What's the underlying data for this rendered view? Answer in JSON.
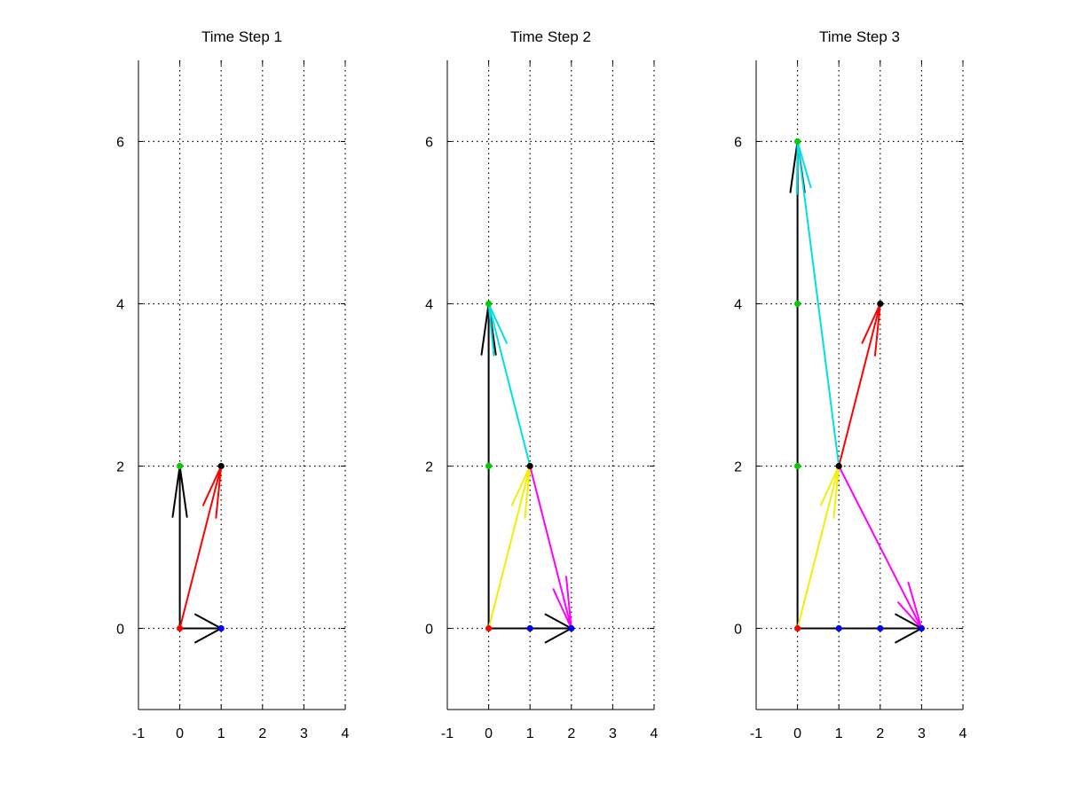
{
  "chart_data": [
    {
      "type": "line",
      "title": "Time Step 1",
      "xlabel": "",
      "ylabel": "",
      "xlim": [
        -1,
        4
      ],
      "ylim": [
        -1,
        7
      ],
      "xticks": [
        -1,
        0,
        1,
        2,
        3,
        4
      ],
      "yticks": [
        0,
        2,
        4,
        6
      ],
      "grid": true,
      "legend": "none",
      "points": [
        {
          "x": 0,
          "y": 2,
          "color": "#00cc00"
        },
        {
          "x": 1,
          "y": 2,
          "color": "#000000"
        },
        {
          "x": 0,
          "y": 0,
          "color": "#ff0000"
        },
        {
          "x": 1,
          "y": 0,
          "color": "#0000ff"
        }
      ],
      "vectors": [
        {
          "x0": 0,
          "y0": 0,
          "x1": 0,
          "y1": 2,
          "color": "#000000"
        },
        {
          "x0": 0,
          "y0": 0,
          "x1": 1,
          "y1": 2,
          "color": "#ff0000"
        },
        {
          "x0": 0,
          "y0": 0,
          "x1": 1,
          "y1": 0,
          "color": "#000000"
        }
      ]
    },
    {
      "type": "line",
      "title": "Time Step 2",
      "xlabel": "",
      "ylabel": "",
      "xlim": [
        -1,
        4
      ],
      "ylim": [
        -1,
        7
      ],
      "xticks": [
        -1,
        0,
        1,
        2,
        3,
        4
      ],
      "yticks": [
        0,
        2,
        4,
        6
      ],
      "grid": true,
      "legend": "none",
      "points": [
        {
          "x": 0,
          "y": 4,
          "color": "#00cc00"
        },
        {
          "x": 0,
          "y": 2,
          "color": "#00cc00"
        },
        {
          "x": 1,
          "y": 2,
          "color": "#000000"
        },
        {
          "x": 0,
          "y": 0,
          "color": "#ff0000"
        },
        {
          "x": 1,
          "y": 0,
          "color": "#0000ff"
        },
        {
          "x": 2,
          "y": 0,
          "color": "#0000ff"
        }
      ],
      "vectors": [
        {
          "x0": 0,
          "y0": 0,
          "x1": 0,
          "y1": 4,
          "color": "#000000"
        },
        {
          "x0": 1,
          "y0": 2,
          "x1": 0,
          "y1": 4,
          "color": "#00e0e0"
        },
        {
          "x0": 0,
          "y0": 0,
          "x1": 1,
          "y1": 2,
          "color": "#f0f000"
        },
        {
          "x0": 1,
          "y0": 2,
          "x1": 2,
          "y1": 0,
          "color": "#ff00ff"
        },
        {
          "x0": 0,
          "y0": 0,
          "x1": 2,
          "y1": 0,
          "color": "#000000"
        }
      ]
    },
    {
      "type": "line",
      "title": "Time Step 3",
      "xlabel": "",
      "ylabel": "",
      "xlim": [
        -1,
        4
      ],
      "ylim": [
        -1,
        7
      ],
      "xticks": [
        -1,
        0,
        1,
        2,
        3,
        4
      ],
      "yticks": [
        0,
        2,
        4,
        6
      ],
      "grid": true,
      "legend": "none",
      "points": [
        {
          "x": 0,
          "y": 6,
          "color": "#00cc00"
        },
        {
          "x": 0,
          "y": 4,
          "color": "#00cc00"
        },
        {
          "x": 0,
          "y": 2,
          "color": "#00cc00"
        },
        {
          "x": 2,
          "y": 4,
          "color": "#000000"
        },
        {
          "x": 1,
          "y": 2,
          "color": "#000000"
        },
        {
          "x": 0,
          "y": 0,
          "color": "#ff0000"
        },
        {
          "x": 1,
          "y": 0,
          "color": "#0000ff"
        },
        {
          "x": 2,
          "y": 0,
          "color": "#0000ff"
        },
        {
          "x": 3,
          "y": 0,
          "color": "#0000ff"
        }
      ],
      "vectors": [
        {
          "x0": 0,
          "y0": 0,
          "x1": 0,
          "y1": 6,
          "color": "#000000"
        },
        {
          "x0": 1,
          "y0": 2,
          "x1": 0,
          "y1": 6,
          "color": "#00e0e0"
        },
        {
          "x0": 1,
          "y0": 2,
          "x1": 2,
          "y1": 4,
          "color": "#ff0000"
        },
        {
          "x0": 0,
          "y0": 0,
          "x1": 1,
          "y1": 2,
          "color": "#f0f000"
        },
        {
          "x0": 1,
          "y0": 2,
          "x1": 3,
          "y1": 0,
          "color": "#ff00ff"
        },
        {
          "x0": 0,
          "y0": 0,
          "x1": 3,
          "y1": 0,
          "color": "#000000"
        }
      ]
    }
  ]
}
